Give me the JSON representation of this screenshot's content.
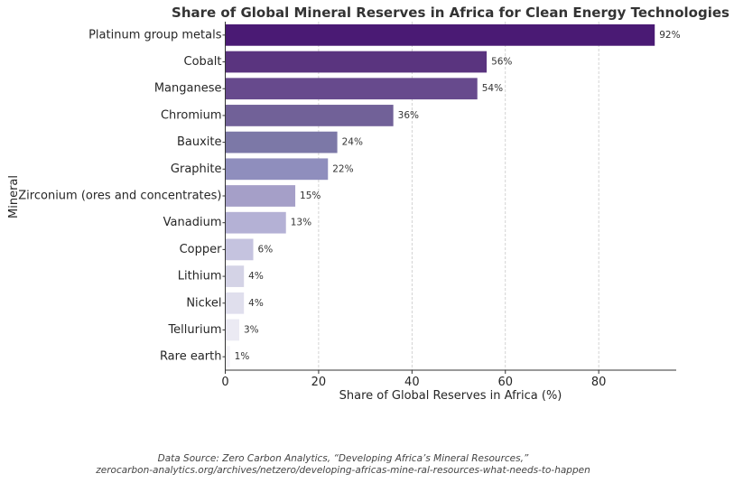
{
  "chart_data": {
    "type": "bar",
    "orientation": "horizontal",
    "title": "Share of Global Mineral Reserves in Africa for Clean Energy Technologies",
    "xlabel": "Share of Global Reserves in Africa (%)",
    "ylabel": "Mineral",
    "categories": [
      "Platinum group metals",
      "Cobalt",
      "Manganese",
      "Chromium",
      "Bauxite",
      "Graphite",
      "Zirconium (ores and concentrates)",
      "Vanadium",
      "Copper",
      "Lithium",
      "Nickel",
      "Tellurium",
      "Rare earth"
    ],
    "values": [
      92,
      56,
      54,
      36,
      24,
      22,
      15,
      13,
      6,
      4,
      4,
      3,
      1
    ],
    "value_labels": [
      "92%",
      "56%",
      "54%",
      "36%",
      "24%",
      "22%",
      "15%",
      "13%",
      "6%",
      "4%",
      "4%",
      "3%",
      "1%"
    ],
    "xlim": [
      0,
      96.6
    ],
    "xticks": [
      0,
      20,
      40,
      60,
      80
    ],
    "xtick_labels": [
      "0",
      "20",
      "40",
      "60",
      "80"
    ],
    "grid": "vertical dashed",
    "colors": [
      "#4a1a74",
      "#5a347f",
      "#674a8d",
      "#716198",
      "#7c78a7",
      "#8f8ebd",
      "#a59fc8",
      "#b4b1d5",
      "#c5c3df",
      "#d4d3e6",
      "#e0dfed",
      "#ebeaf3",
      "#f5f4f9"
    ]
  },
  "source_line1": "Data Source: Zero Carbon Analytics, “Developing Africa’s Mineral Resources,”",
  "source_line2": "zerocarbon-analytics.org/archives/netzero/developing-africas-mine-ral-resources-what-needs-to-happen"
}
